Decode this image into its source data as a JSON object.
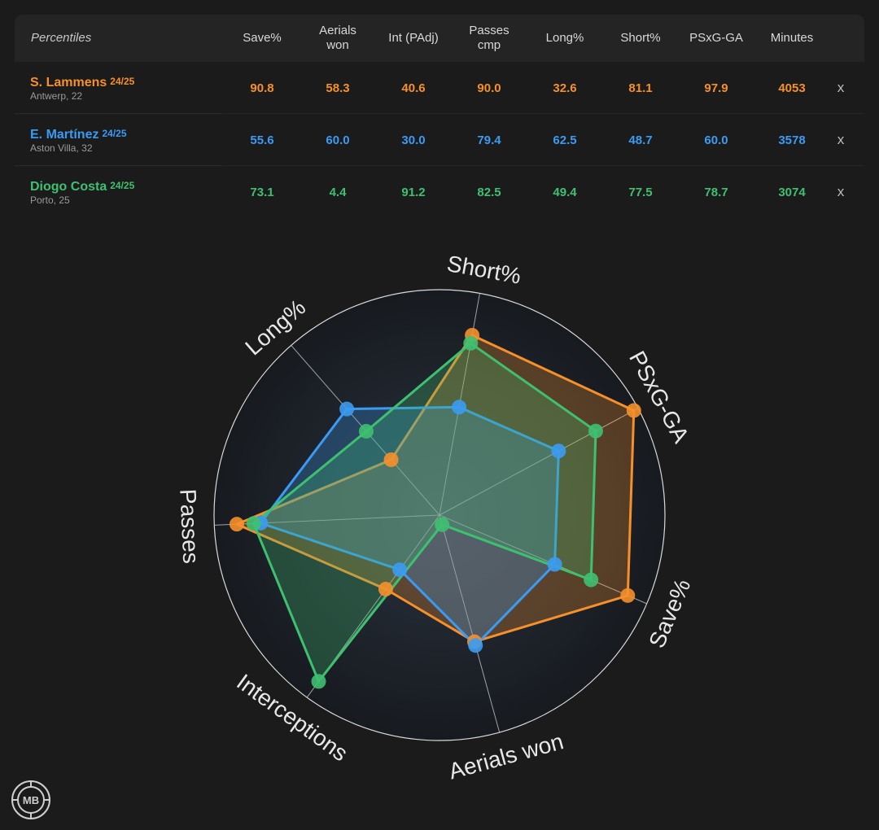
{
  "table": {
    "header_label": "Percentiles",
    "columns": [
      "Save%",
      "Aerials\nwon",
      "Int (PAdj)",
      "Passes\ncmp",
      "Long%",
      "Short%",
      "PSxG-GA",
      "Minutes"
    ],
    "close_label": "x",
    "rows": [
      {
        "name": "S. Lammens",
        "season": "24/25",
        "sub": "Antwerp, 22",
        "color": "#f5902b",
        "values": [
          "90.8",
          "58.3",
          "40.6",
          "90.0",
          "32.6",
          "81.1",
          "97.9",
          "4053"
        ]
      },
      {
        "name": "E. Martínez",
        "season": "24/25",
        "sub": "Aston Villa, 32",
        "color": "#3b9bf2",
        "values": [
          "55.6",
          "60.0",
          "30.0",
          "79.4",
          "62.5",
          "48.7",
          "60.0",
          "3578"
        ]
      },
      {
        "name": "Diogo Costa",
        "season": "24/25",
        "sub": "Porto, 25",
        "color": "#3fc071",
        "values": [
          "73.1",
          "4.4",
          "91.2",
          "82.5",
          "49.4",
          "77.5",
          "78.7",
          "3074"
        ]
      }
    ]
  },
  "chart_data": {
    "type": "radar",
    "axes": [
      "Short%",
      "PSxG-GA",
      "Save%",
      "Aerials won",
      "Interceptions",
      "Passes",
      "Long%"
    ],
    "range": [
      0,
      100
    ],
    "grid": true,
    "series": [
      {
        "name": "S. Lammens",
        "color": "#f5902b",
        "values": [
          81.1,
          97.9,
          90.8,
          58.3,
          40.6,
          90.0,
          32.6
        ]
      },
      {
        "name": "E. Martínez",
        "color": "#3b9bf2",
        "values": [
          48.7,
          60.0,
          55.6,
          60.0,
          30.0,
          79.4,
          62.5
        ]
      },
      {
        "name": "Diogo Costa",
        "color": "#3fc071",
        "values": [
          77.5,
          78.7,
          73.1,
          4.4,
          91.2,
          82.5,
          49.4
        ]
      }
    ]
  },
  "logo_text": "MB"
}
